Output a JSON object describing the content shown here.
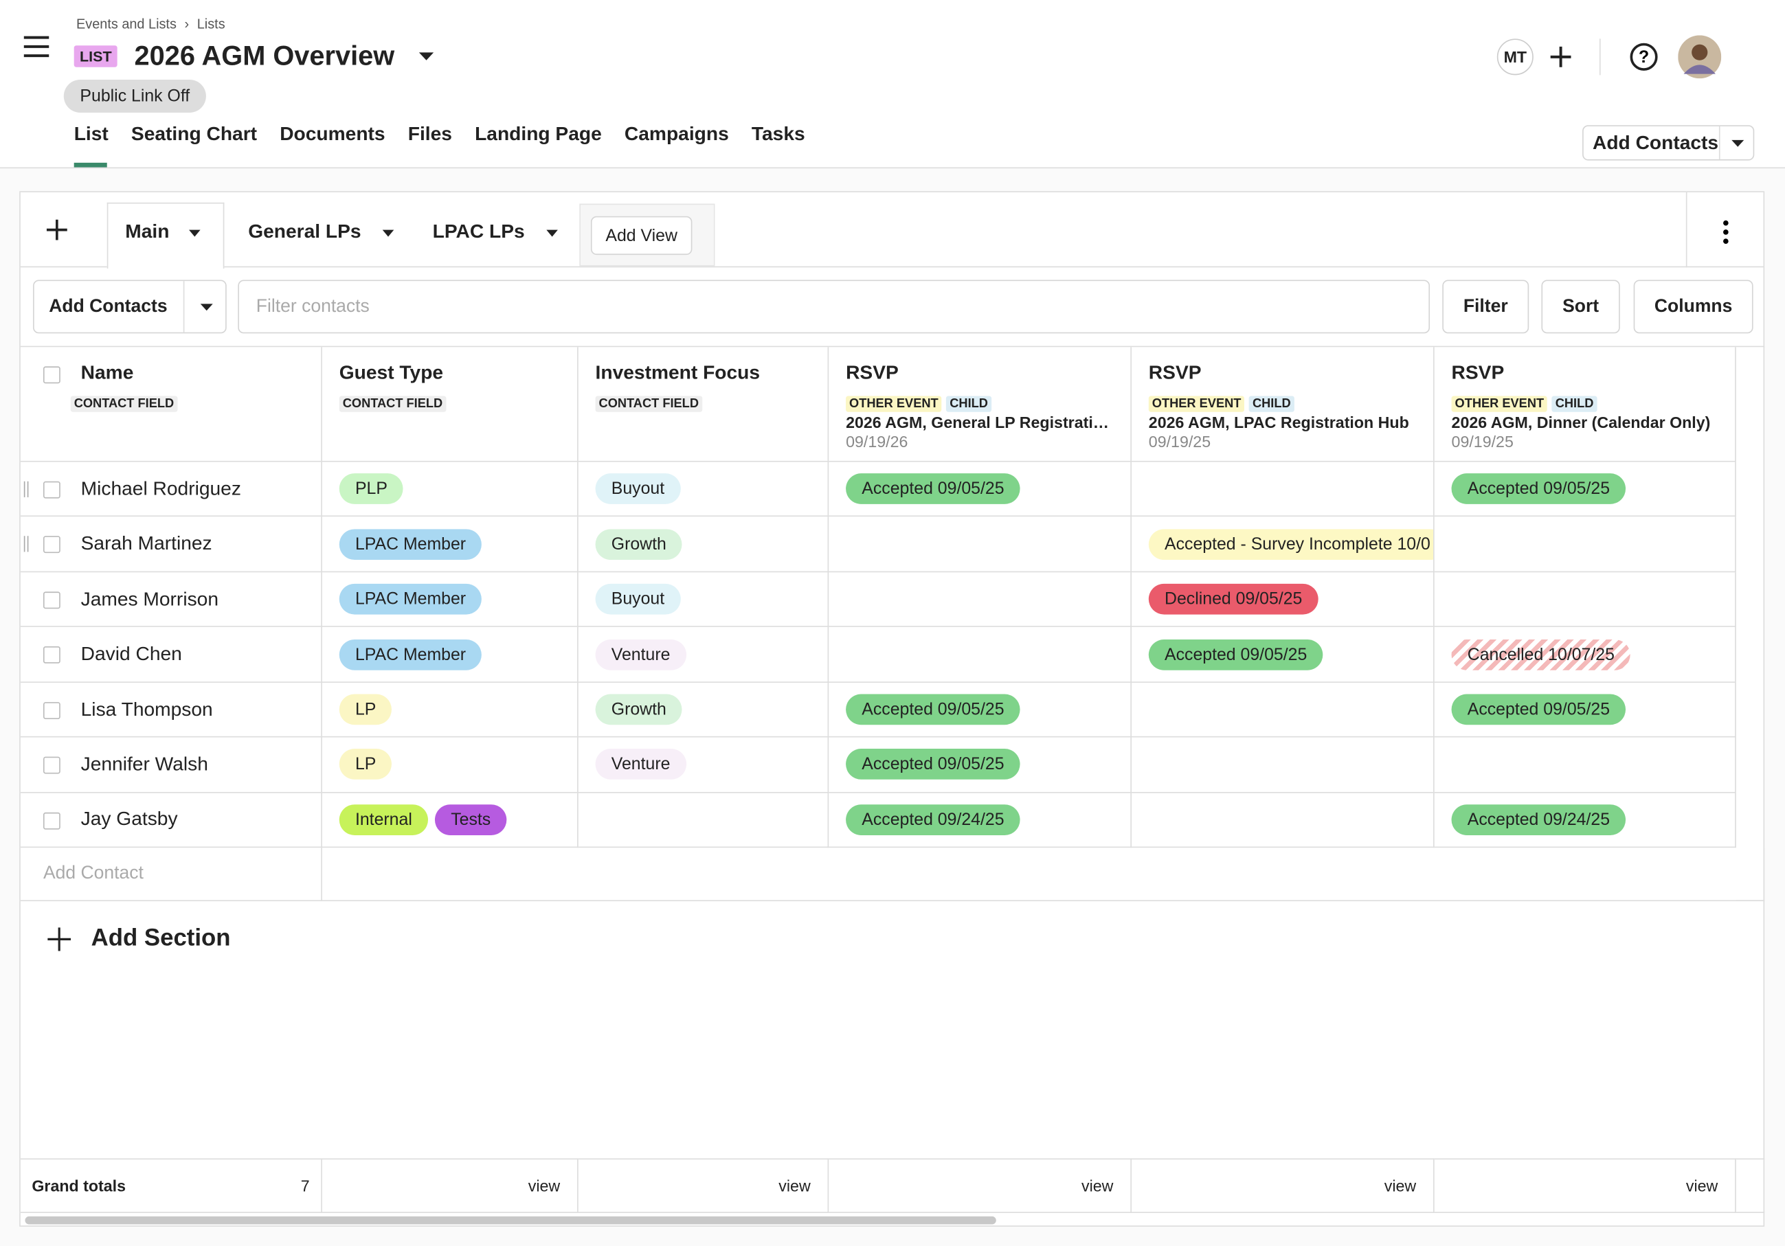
{
  "breadcrumb": [
    "Events and Lists",
    "Lists"
  ],
  "header": {
    "badge": "LIST",
    "title": "2026 AGM Overview",
    "public_link": "Public Link Off",
    "initials": "MT",
    "add_contacts": "Add Contacts"
  },
  "tabs": [
    "List",
    "Seating Chart",
    "Documents",
    "Files",
    "Landing Page",
    "Campaigns",
    "Tasks"
  ],
  "views": {
    "items": [
      "Main",
      "General LPs",
      "LPAC LPs"
    ],
    "add_view": "Add View"
  },
  "toolbar": {
    "add_contacts": "Add Contacts",
    "filter_placeholder": "Filter contacts",
    "buttons": [
      "Filter",
      "Sort",
      "Columns"
    ]
  },
  "table": {
    "columns": [
      {
        "title": "Name",
        "tags": [
          {
            "label": "CONTACT FIELD",
            "color": "#eeeeee"
          }
        ]
      },
      {
        "title": "Guest Type",
        "tags": [
          {
            "label": "CONTACT FIELD",
            "color": "#eeeeee"
          }
        ]
      },
      {
        "title": "Investment Focus",
        "tags": [
          {
            "label": "CONTACT FIELD",
            "color": "#eeeeee"
          }
        ]
      },
      {
        "title": "RSVP",
        "tags": [
          {
            "label": "OTHER EVENT",
            "color": "#fbf6c4"
          },
          {
            "label": "CHILD",
            "color": "#dcedf5"
          }
        ],
        "event": "2026 AGM, General LP Registrati…",
        "date": "09/19/26"
      },
      {
        "title": "RSVP",
        "tags": [
          {
            "label": "OTHER EVENT",
            "color": "#fbf6c4"
          },
          {
            "label": "CHILD",
            "color": "#dcedf5"
          }
        ],
        "event": "2026 AGM, LPAC Registration Hub",
        "date": "09/19/25"
      },
      {
        "title": "RSVP",
        "tags": [
          {
            "label": "OTHER EVENT",
            "color": "#fbf6c4"
          },
          {
            "label": "CHILD",
            "color": "#dcedf5"
          }
        ],
        "event": "2026 AGM, Dinner (Calendar Only)",
        "date": "09/19/25"
      }
    ],
    "rows": [
      {
        "name": "Michael Rodriguez",
        "guest_types": [
          {
            "label": "PLP",
            "color": "#c9f5c4"
          }
        ],
        "focus": {
          "label": "Buyout",
          "color": "#e0f3f8"
        },
        "rsvps": [
          {
            "label": "Accepted 09/05/25",
            "color": "#7fd38a"
          },
          null,
          {
            "label": "Accepted 09/05/25",
            "color": "#7fd38a"
          }
        ]
      },
      {
        "name": "Sarah Martinez",
        "guest_types": [
          {
            "label": "LPAC Member",
            "color": "#a9d8f2"
          }
        ],
        "focus": {
          "label": "Growth",
          "color": "#d9f3dc"
        },
        "rsvps": [
          null,
          {
            "label": "Accepted - Survey Incomplete 10/0",
            "color": "#fdf8c4"
          },
          null
        ]
      },
      {
        "name": "James Morrison",
        "guest_types": [
          {
            "label": "LPAC Member",
            "color": "#a9d8f2"
          }
        ],
        "focus": {
          "label": "Buyout",
          "color": "#e0f3f8"
        },
        "rsvps": [
          null,
          {
            "label": "Declined 09/05/25",
            "color": "#ea5b6b"
          },
          null
        ]
      },
      {
        "name": "David Chen",
        "guest_types": [
          {
            "label": "LPAC Member",
            "color": "#a9d8f2"
          }
        ],
        "focus": {
          "label": "Venture",
          "color": "#f7eff8"
        },
        "rsvps": [
          null,
          {
            "label": "Accepted 09/05/25",
            "color": "#7fd38a"
          },
          {
            "label": "Cancelled 10/07/25",
            "color": "#f4b9b9",
            "pattern": "striped"
          }
        ]
      },
      {
        "name": "Lisa Thompson",
        "guest_types": [
          {
            "label": "LP",
            "color": "#fbf6c4"
          }
        ],
        "focus": {
          "label": "Growth",
          "color": "#d9f3dc"
        },
        "rsvps": [
          {
            "label": "Accepted 09/05/25",
            "color": "#7fd38a"
          },
          null,
          {
            "label": "Accepted 09/05/25",
            "color": "#7fd38a"
          }
        ]
      },
      {
        "name": "Jennifer Walsh",
        "guest_types": [
          {
            "label": "LP",
            "color": "#fbf6c4"
          }
        ],
        "focus": {
          "label": "Venture",
          "color": "#f7eff8"
        },
        "rsvps": [
          {
            "label": "Accepted 09/05/25",
            "color": "#7fd38a"
          },
          null,
          null
        ]
      },
      {
        "name": "Jay Gatsby",
        "guest_types": [
          {
            "label": "Internal",
            "color": "#c7f25a"
          },
          {
            "label": "Tests",
            "color": "#b65be0"
          }
        ],
        "focus": null,
        "rsvps": [
          {
            "label": "Accepted 09/24/25",
            "color": "#7fd38a"
          },
          null,
          {
            "label": "Accepted 09/24/25",
            "color": "#7fd38a"
          }
        ]
      }
    ],
    "add_contact": "Add Contact",
    "add_section": "Add Section",
    "footer": {
      "label": "Grand totals",
      "count": 7,
      "links": [
        "view",
        "view",
        "view",
        "view",
        "view"
      ]
    }
  }
}
